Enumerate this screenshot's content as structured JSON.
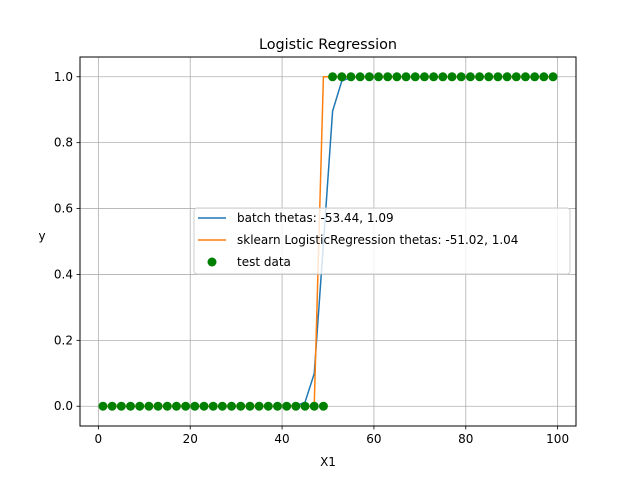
{
  "chart_data": {
    "type": "line",
    "title": "Logistic Regression",
    "xlabel": "X1",
    "ylabel": "y",
    "xlim": [
      -4,
      104
    ],
    "ylim": [
      -0.06,
      1.06
    ],
    "x_ticks": [
      0,
      20,
      40,
      60,
      80,
      100
    ],
    "y_ticks": [
      0.0,
      0.2,
      0.4,
      0.6,
      0.8,
      1.0
    ],
    "x_tick_labels": [
      "0",
      "20",
      "40",
      "60",
      "80",
      "100"
    ],
    "y_tick_labels": [
      "0.0",
      "0.2",
      "0.4",
      "0.6",
      "0.8",
      "1.0"
    ],
    "grid": true,
    "legend_position": "center-right",
    "series": [
      {
        "name": "batch thetas: -53.44, 1.09",
        "kind": "line",
        "color": "#1f77b4",
        "model": "logistic",
        "theta0": -53.44,
        "theta1": 1.09,
        "x": [
          1,
          3,
          5,
          7,
          9,
          11,
          13,
          15,
          17,
          19,
          21,
          23,
          25,
          27,
          29,
          31,
          33,
          35,
          37,
          39,
          41,
          43,
          45,
          47,
          49,
          51,
          53,
          55,
          57,
          59,
          61,
          63,
          65,
          67,
          69,
          71,
          73,
          75,
          77,
          79,
          81,
          83,
          85,
          87,
          89,
          91,
          93,
          95,
          97,
          99
        ]
      },
      {
        "name": "sklearn LogisticRegression thetas: -51.02, 1.04",
        "kind": "line",
        "color": "#ff7f0e",
        "x": [
          1,
          47,
          49,
          99
        ],
        "y": [
          0,
          0,
          1,
          1
        ]
      },
      {
        "name": "test data",
        "kind": "scatter",
        "color": "#008000",
        "x": [
          1,
          3,
          5,
          7,
          9,
          11,
          13,
          15,
          17,
          19,
          21,
          23,
          25,
          27,
          29,
          31,
          33,
          35,
          37,
          39,
          41,
          43,
          45,
          47,
          49,
          51,
          53,
          55,
          57,
          59,
          61,
          63,
          65,
          67,
          69,
          71,
          73,
          75,
          77,
          79,
          81,
          83,
          85,
          87,
          89,
          91,
          93,
          95,
          97,
          99
        ],
        "y": [
          0,
          0,
          0,
          0,
          0,
          0,
          0,
          0,
          0,
          0,
          0,
          0,
          0,
          0,
          0,
          0,
          0,
          0,
          0,
          0,
          0,
          0,
          0,
          0,
          0,
          1,
          1,
          1,
          1,
          1,
          1,
          1,
          1,
          1,
          1,
          1,
          1,
          1,
          1,
          1,
          1,
          1,
          1,
          1,
          1,
          1,
          1,
          1,
          1,
          1
        ]
      }
    ]
  }
}
